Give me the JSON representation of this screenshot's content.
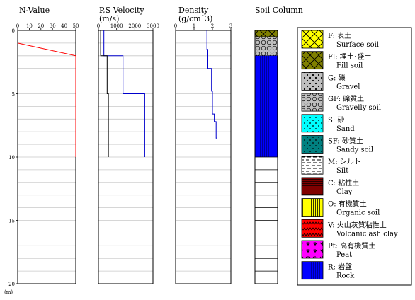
{
  "chart_data": [
    {
      "type": "line",
      "title": "N-Value",
      "xticks": [
        0,
        10,
        20,
        30,
        40,
        50
      ],
      "xlim": [
        0,
        50
      ],
      "ylim": [
        0,
        20
      ],
      "series": [
        {
          "color": "#ff0000",
          "points": [
            [
              0,
              1.0
            ],
            [
              50,
              2.0
            ],
            [
              50,
              10.0
            ]
          ]
        }
      ]
    },
    {
      "type": "line",
      "title": "P,S Velocity",
      "unit": "(m/s)",
      "xticks": [
        0,
        1000,
        2000,
        3000
      ],
      "xlim": [
        0,
        3000
      ],
      "ylim": [
        0,
        20
      ],
      "series": [
        {
          "color": "#0000cc",
          "points": [
            [
              300,
              0
            ],
            [
              300,
              2.0
            ],
            [
              1350,
              2.0
            ],
            [
              1350,
              5.0
            ],
            [
              2550,
              5.0
            ],
            [
              2550,
              10.0
            ]
          ]
        },
        {
          "color": "#000000",
          "points": [
            [
              120,
              0
            ],
            [
              120,
              2.0
            ],
            [
              480,
              2.0
            ],
            [
              480,
              5.0
            ],
            [
              550,
              5.0
            ],
            [
              550,
              10.0
            ]
          ]
        }
      ]
    },
    {
      "type": "line",
      "title": "Density",
      "unit": "(g/cm^3)",
      "xticks": [
        0,
        1,
        2,
        3
      ],
      "xlim": [
        0,
        3
      ],
      "ylim": [
        0,
        20
      ],
      "series": [
        {
          "color": "#0000cc",
          "points": [
            [
              1.7,
              0
            ],
            [
              1.7,
              1.5
            ],
            [
              1.75,
              1.5
            ],
            [
              1.75,
              3.0
            ],
            [
              1.95,
              3.0
            ],
            [
              1.95,
              4.8
            ],
            [
              2.0,
              4.8
            ],
            [
              2.0,
              6.6
            ],
            [
              2.1,
              6.6
            ],
            [
              2.1,
              7.2
            ],
            [
              2.2,
              7.2
            ],
            [
              2.2,
              8.5
            ],
            [
              2.25,
              8.5
            ],
            [
              2.25,
              10.0
            ]
          ]
        }
      ]
    },
    {
      "type": "table",
      "title": "Soil Column",
      "ylim": [
        0,
        20
      ],
      "layers": [
        {
          "code": "Fl",
          "top": 0,
          "bottom": 0.5
        },
        {
          "code": "GF",
          "top": 0.5,
          "bottom": 2.0
        },
        {
          "code": "R",
          "top": 2.0,
          "bottom": 10.0
        }
      ]
    }
  ],
  "axis": {
    "depth_ticks": [
      "5",
      "10",
      "15",
      "20"
    ],
    "depth_tick_values": [
      5,
      10,
      15,
      20
    ],
    "unit": "(m)"
  },
  "legend": [
    {
      "code": "F",
      "jp": "F: 表土",
      "en": "Surface soil",
      "bg": "#ffff00",
      "fg": "#000000",
      "pattern": "cross"
    },
    {
      "code": "Fl",
      "jp": "Fl: 埋土･盛土",
      "en": "Fill soil",
      "bg": "#808000",
      "fg": "#000000",
      "pattern": "cross"
    },
    {
      "code": "G",
      "jp": "G: 礫",
      "en": "Gravel",
      "bg": "#c0c0c0",
      "fg": "#000000",
      "pattern": "gravel"
    },
    {
      "code": "GF",
      "jp": "GF: 礫質土",
      "en": "Gravelly soil",
      "bg": "#c0c0c0",
      "fg": "#000000",
      "pattern": "circles"
    },
    {
      "code": "S",
      "jp": "S: 砂",
      "en": "Sand",
      "bg": "#00ffff",
      "fg": "#000000",
      "pattern": "dots"
    },
    {
      "code": "SF",
      "jp": "SF: 砂質土",
      "en": "Sandy soil",
      "bg": "#008080",
      "fg": "#000000",
      "pattern": "dots"
    },
    {
      "code": "M",
      "jp": "M: シルト",
      "en": "Silt",
      "bg": "#ffffff",
      "fg": "#000000",
      "pattern": "dashes"
    },
    {
      "code": "C",
      "jp": "C: 粘性土",
      "en": "Clay",
      "bg": "#800000",
      "fg": "#000000",
      "pattern": "hlines"
    },
    {
      "code": "O",
      "jp": "O: 有機質土",
      "en": "Organic soil",
      "bg": "#ffff00",
      "fg": "#000000",
      "pattern": "vlines"
    },
    {
      "code": "V",
      "jp": "V: 火山灰質粘性土",
      "en": "Volcanic ash clay",
      "bg": "#ff0000",
      "fg": "#000000",
      "pattern": "zigzag"
    },
    {
      "code": "Pt",
      "jp": "Pt: 高有機質土",
      "en": "Peat",
      "bg": "#ff00ff",
      "fg": "#000000",
      "pattern": "peat"
    },
    {
      "code": "R",
      "jp": "R: 岩盤",
      "en": "Rock",
      "bg": "#0000ff",
      "fg": "#000080",
      "pattern": "vlines"
    }
  ]
}
